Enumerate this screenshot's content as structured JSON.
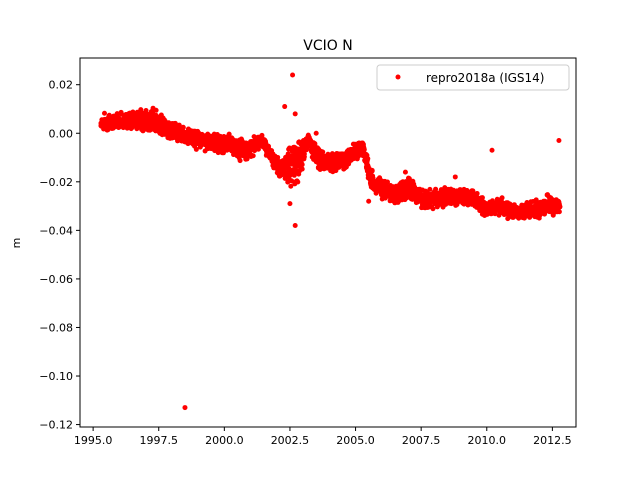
{
  "chart_data": {
    "type": "scatter",
    "title": "VCIO N",
    "xlabel": "",
    "ylabel": "m",
    "xlim": [
      1994.5,
      2013.4
    ],
    "ylim": [
      -0.121,
      0.031
    ],
    "xticks": [
      "1995.0",
      "1997.5",
      "2000.0",
      "2002.5",
      "2005.0",
      "2007.5",
      "2010.0",
      "2012.5"
    ],
    "xtick_values": [
      1995.0,
      1997.5,
      2000.0,
      2002.5,
      2005.0,
      2007.5,
      2010.0,
      2012.5
    ],
    "yticks": [
      "0.02",
      "0.00",
      "−0.02",
      "−0.04",
      "−0.06",
      "−0.08",
      "−0.10",
      "−0.12"
    ],
    "ytick_values": [
      0.02,
      0.0,
      -0.02,
      -0.04,
      -0.06,
      -0.08,
      -0.1,
      -0.12
    ],
    "grid": false,
    "legend_position": "top-right",
    "color": "#ff0000",
    "series": [
      {
        "name": "repro2018a (IGS14)",
        "envelope_note_columns": [
          "x",
          "y_center",
          "y_low",
          "y_high"
        ],
        "envelope": [
          [
            1995.3,
            0.004,
            0.0,
            0.009
          ],
          [
            1995.8,
            0.005,
            0.001,
            0.009
          ],
          [
            1996.3,
            0.005,
            0.001,
            0.01
          ],
          [
            1996.8,
            0.005,
            0.0,
            0.011
          ],
          [
            1997.3,
            0.005,
            0.0,
            0.012
          ],
          [
            1997.8,
            0.002,
            -0.003,
            0.007
          ],
          [
            1998.3,
            0.0,
            -0.005,
            0.005
          ],
          [
            1998.8,
            -0.002,
            -0.007,
            0.003
          ],
          [
            1999.3,
            -0.003,
            -0.008,
            0.002
          ],
          [
            1999.8,
            -0.004,
            -0.009,
            0.001
          ],
          [
            2000.3,
            -0.005,
            -0.01,
            0.0
          ],
          [
            2000.8,
            -0.007,
            -0.013,
            -0.002
          ],
          [
            2001.2,
            -0.005,
            -0.009,
            -0.001
          ],
          [
            2001.4,
            -0.002,
            -0.006,
            0.0
          ],
          [
            2001.8,
            -0.01,
            -0.015,
            -0.006
          ],
          [
            2002.2,
            -0.015,
            -0.02,
            -0.01
          ],
          [
            2002.5,
            -0.012,
            -0.024,
            -0.002
          ],
          [
            2002.8,
            -0.01,
            -0.028,
            0.0
          ],
          [
            2003.2,
            -0.002,
            -0.008,
            0.001
          ],
          [
            2003.6,
            -0.011,
            -0.017,
            -0.006
          ],
          [
            2004.1,
            -0.012,
            -0.017,
            -0.007
          ],
          [
            2004.6,
            -0.011,
            -0.016,
            -0.006
          ],
          [
            2005.0,
            -0.007,
            -0.012,
            -0.003
          ],
          [
            2005.3,
            -0.006,
            -0.012,
            -0.003
          ],
          [
            2005.6,
            -0.02,
            -0.026,
            -0.014
          ],
          [
            2006.0,
            -0.023,
            -0.028,
            -0.018
          ],
          [
            2006.5,
            -0.025,
            -0.03,
            -0.02
          ],
          [
            2007.0,
            -0.023,
            -0.029,
            -0.017
          ],
          [
            2007.5,
            -0.027,
            -0.032,
            -0.022
          ],
          [
            2008.0,
            -0.027,
            -0.032,
            -0.022
          ],
          [
            2008.5,
            -0.026,
            -0.031,
            -0.021
          ],
          [
            2009.0,
            -0.026,
            -0.031,
            -0.021
          ],
          [
            2009.5,
            -0.027,
            -0.032,
            -0.022
          ],
          [
            2010.0,
            -0.032,
            -0.036,
            -0.027
          ],
          [
            2010.5,
            -0.03,
            -0.035,
            -0.025
          ],
          [
            2011.0,
            -0.032,
            -0.036,
            -0.028
          ],
          [
            2011.5,
            -0.032,
            -0.036,
            -0.028
          ],
          [
            2012.0,
            -0.031,
            -0.036,
            -0.026
          ],
          [
            2012.3,
            -0.029,
            -0.035,
            -0.024
          ],
          [
            2012.8,
            -0.03,
            -0.034,
            -0.027
          ]
        ],
        "outliers": [
          [
            1998.5,
            -0.113
          ],
          [
            2002.6,
            0.024
          ],
          [
            2002.3,
            0.011
          ],
          [
            2002.7,
            0.008
          ],
          [
            2002.7,
            -0.038
          ],
          [
            2002.5,
            -0.029
          ],
          [
            2010.2,
            -0.007
          ],
          [
            2012.75,
            -0.003
          ],
          [
            2008.8,
            -0.018
          ],
          [
            2006.9,
            -0.016
          ],
          [
            2005.5,
            -0.028
          ],
          [
            2003.5,
            0.0
          ]
        ]
      }
    ]
  }
}
